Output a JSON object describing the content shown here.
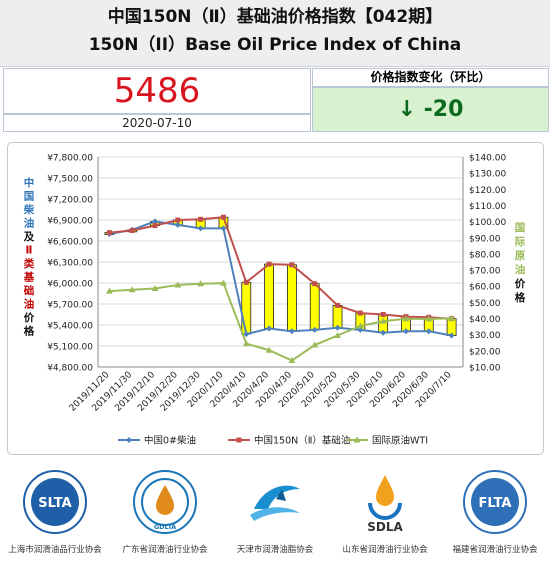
{
  "header": {
    "title_cn": "中国150N（Ⅱ）基础油价格指数【042期】",
    "title_en": "150N（II）Base Oil Price Index of China"
  },
  "index": {
    "value": "5486",
    "date": "2020-07-10",
    "change_label": "价格指数变化（环比）",
    "change_value": "↓ -20"
  },
  "chart_data": {
    "type": "line",
    "categories": [
      "2019/11/20",
      "2019/11/30",
      "2019/12/10",
      "2019/12/20",
      "2019/12/30",
      "2020/1/10",
      "2020/4/10",
      "2020/4/20",
      "2020/4/30",
      "2020/5/10",
      "2020/5/20",
      "2020/5/30",
      "2020/6/10",
      "2020/6/20",
      "2020/6/30",
      "2020/7/10"
    ],
    "series": [
      {
        "name": "中国0#柴油",
        "axis": "left",
        "color": "#4f81bd",
        "values": [
          6700,
          6760,
          6880,
          6830,
          6780,
          6780,
          5270,
          5350,
          5310,
          5330,
          5360,
          5330,
          5290,
          5310,
          5310,
          5250
        ]
      },
      {
        "name": "中国150N（Ⅱ）基础油",
        "axis": "left",
        "color": "#c0504d",
        "values": [
          6720,
          6750,
          6820,
          6900,
          6910,
          6940,
          6010,
          6270,
          6260,
          5990,
          5680,
          5570,
          5550,
          5520,
          5510,
          5490
        ]
      },
      {
        "name": "国际原油WTI",
        "axis": "right",
        "color": "#9bbb59",
        "values": [
          57.0,
          57.8,
          58.6,
          60.8,
          61.5,
          61.9,
          24.5,
          20.4,
          14.0,
          23.6,
          29.5,
          35.4,
          38.3,
          39.9,
          39.8,
          40.1
        ]
      }
    ],
    "bars": {
      "low": "中国0#柴油",
      "high": "中国150N（Ⅱ）基础油",
      "fill": "#ffff00"
    },
    "left_axis": {
      "min": 4800,
      "max": 7800,
      "step": 300,
      "prefix": "¥",
      "decimals": 2,
      "label": [
        "中",
        "国",
        "柴",
        "油",
        "及",
        "Ⅱ",
        "类",
        "基",
        "础",
        "油",
        "价",
        "格"
      ],
      "label_colors": [
        "#2e75b6",
        "#2e75b6",
        "#2e75b6",
        "#2e75b6",
        "#111111",
        "#c00000",
        "#c00000",
        "#c00000",
        "#c00000",
        "#c00000",
        "#111111",
        "#111111"
      ]
    },
    "right_axis": {
      "min": 10,
      "max": 140,
      "step": 10,
      "prefix": "$",
      "decimals": 2,
      "label": [
        "国",
        "际",
        "原",
        "油",
        "价",
        "格"
      ],
      "label_colors": [
        "#9bbb59",
        "#9bbb59",
        "#9bbb59",
        "#9bbb59",
        "#111111",
        "#111111"
      ]
    },
    "grid": true,
    "legend_position": "bottom"
  },
  "footer": {
    "orgs": [
      {
        "abbr": "SLTA",
        "name": "上海市润滑油品行业协会",
        "color": "#1f5fa8"
      },
      {
        "abbr": "GDLIA",
        "name": "广东省润滑油行业协会",
        "color": "#1976b8"
      },
      {
        "abbr": "",
        "name": "天津市润滑油脂协会",
        "color": "#1a8fd0"
      },
      {
        "abbr": "SDLA",
        "name": "山东省润滑油行业协会",
        "color": "#333333"
      },
      {
        "abbr": "FLTA",
        "name": "福建省润滑油行业协会",
        "color": "#2f6fb7"
      }
    ]
  }
}
